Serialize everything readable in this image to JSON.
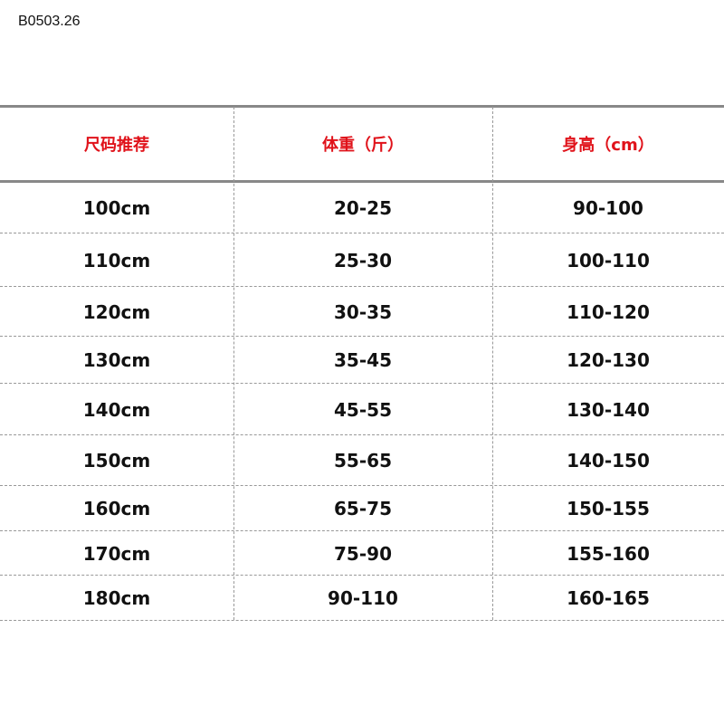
{
  "code": "B0503.26",
  "table": {
    "headers": [
      "尺码推荐",
      "体重（斤）",
      "身高（cm）"
    ],
    "rows": [
      [
        "100cm",
        "20-25",
        "90-100"
      ],
      [
        "110cm",
        "25-30",
        "100-110"
      ],
      [
        "120cm",
        "30-35",
        "110-120"
      ],
      [
        "130cm",
        "35-45",
        "120-130"
      ],
      [
        "140cm",
        "45-55",
        "130-140"
      ],
      [
        "150cm",
        "55-65",
        "140-150"
      ],
      [
        "160cm",
        "65-75",
        "150-155"
      ],
      [
        "170cm",
        "75-90",
        "155-160"
      ],
      [
        "180cm",
        "90-110",
        "160-165"
      ]
    ]
  },
  "colors": {
    "header_text": "#e0121a",
    "body_text": "#111111",
    "rule": "#888888"
  }
}
